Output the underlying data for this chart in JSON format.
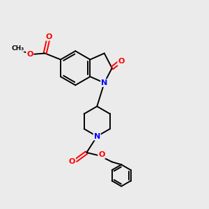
{
  "background_color": "#ebebeb",
  "bond_color": "#000000",
  "nitrogen_color": "#0000ff",
  "oxygen_color": "#ff0000",
  "bond_width": 1.4,
  "figsize": [
    3.0,
    3.0
  ],
  "dpi": 100,
  "xlim": [
    0,
    10
  ],
  "ylim": [
    0,
    10
  ]
}
